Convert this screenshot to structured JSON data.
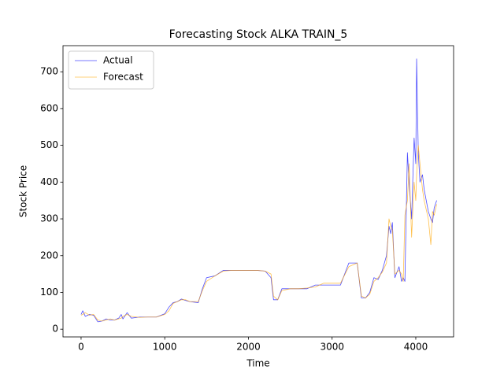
{
  "chart_data": {
    "type": "line",
    "title": "Forecasting Stock ALKA TRAIN_5",
    "x_label": "Time",
    "y_label": "Stock Price",
    "x": [
      0,
      20,
      50,
      100,
      150,
      200,
      250,
      300,
      350,
      400,
      450,
      480,
      500,
      550,
      600,
      700,
      800,
      900,
      1000,
      1050,
      1100,
      1150,
      1200,
      1250,
      1300,
      1400,
      1450,
      1500,
      1600,
      1700,
      1800,
      1900,
      2000,
      2100,
      2200,
      2270,
      2300,
      2350,
      2400,
      2500,
      2600,
      2700,
      2800,
      2900,
      3000,
      3100,
      3200,
      3300,
      3350,
      3400,
      3450,
      3500,
      3550,
      3600,
      3650,
      3680,
      3700,
      3720,
      3750,
      3800,
      3830,
      3850,
      3870,
      3900,
      3920,
      3950,
      3980,
      4000,
      4010,
      4030,
      4050,
      4080,
      4100,
      4150,
      4180,
      4200,
      4220,
      4250
    ],
    "series": [
      {
        "name": "Actual",
        "color": "#0000ff",
        "values": [
          40,
          50,
          35,
          40,
          38,
          20,
          22,
          28,
          25,
          25,
          30,
          40,
          28,
          45,
          30,
          33,
          33,
          33,
          42,
          60,
          72,
          75,
          82,
          78,
          75,
          72,
          110,
          140,
          145,
          160,
          160,
          160,
          160,
          160,
          158,
          140,
          80,
          80,
          110,
          110,
          110,
          110,
          120,
          120,
          120,
          120,
          180,
          180,
          85,
          85,
          100,
          140,
          135,
          160,
          200,
          280,
          260,
          290,
          140,
          170,
          130,
          140,
          130,
          480,
          400,
          300,
          520,
          450,
          735,
          480,
          400,
          420,
          380,
          320,
          300,
          290,
          330,
          350
        ]
      },
      {
        "name": "Forecast",
        "color": "#ffa500",
        "values": [
          38,
          40,
          45,
          38,
          40,
          25,
          22,
          25,
          28,
          25,
          28,
          30,
          35,
          40,
          35,
          32,
          33,
          33,
          40,
          50,
          70,
          75,
          80,
          80,
          75,
          75,
          105,
          130,
          145,
          158,
          160,
          160,
          160,
          160,
          158,
          150,
          90,
          80,
          105,
          110,
          110,
          112,
          115,
          125,
          125,
          125,
          170,
          180,
          90,
          85,
          95,
          130,
          140,
          155,
          180,
          300,
          280,
          270,
          150,
          160,
          150,
          130,
          310,
          350,
          450,
          250,
          400,
          350,
          420,
          500,
          450,
          380,
          350,
          300,
          230,
          320,
          310,
          340
        ]
      }
    ],
    "xlim": [
      -216,
      4452
    ],
    "ylim": [
      -21,
      771
    ],
    "xticks": [
      0,
      1000,
      2000,
      3000,
      4000
    ],
    "yticks": [
      0,
      100,
      200,
      300,
      400,
      500,
      600,
      700
    ],
    "legend": "upper left"
  }
}
